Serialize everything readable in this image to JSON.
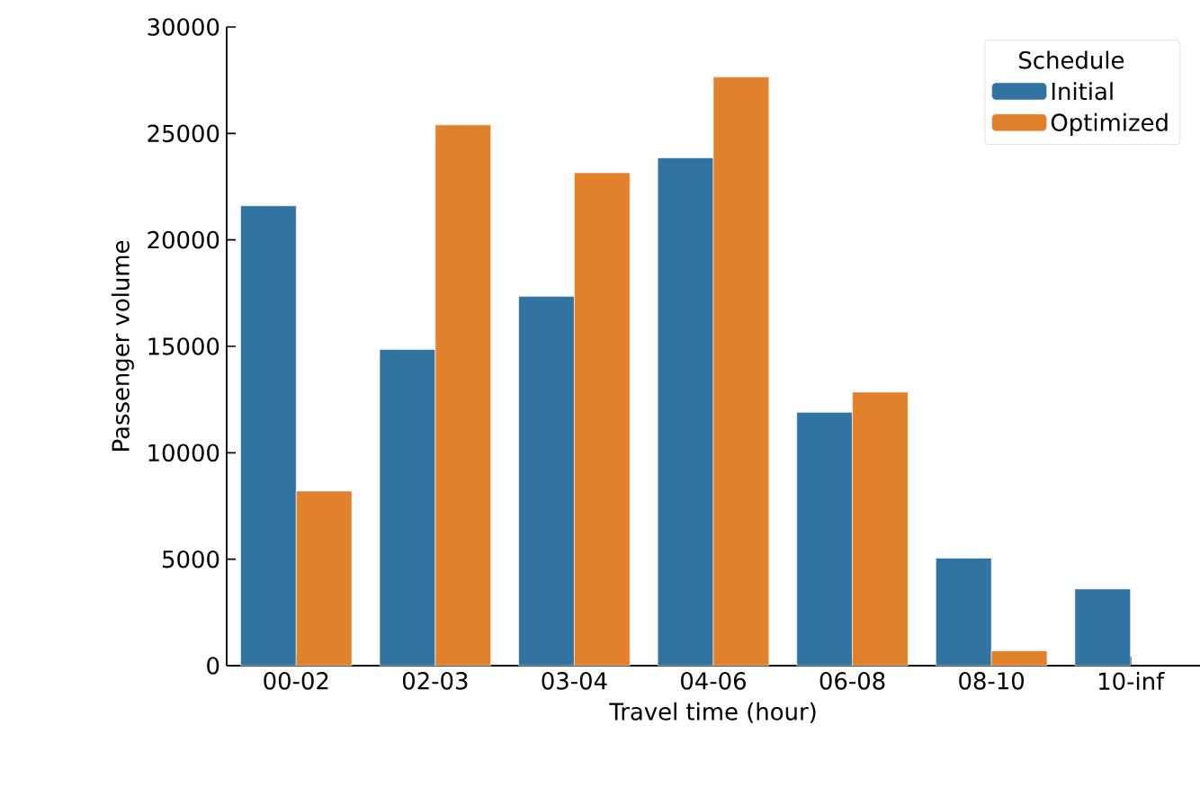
{
  "chart_data": {
    "type": "bar",
    "xlabel": "Travel time (hour)",
    "ylabel": "Passenger volume",
    "legend_title": "Schedule",
    "categories": [
      "00-02",
      "02-03",
      "03-04",
      "04-06",
      "06-08",
      "08-10",
      "10-inf"
    ],
    "series": [
      {
        "name": "Initial",
        "color": "#3274a1",
        "values": [
          21600,
          14850,
          17350,
          23850,
          11900,
          5050,
          3600
        ]
      },
      {
        "name": "Optimized",
        "color": "#e1812c",
        "values": [
          8200,
          25400,
          23150,
          27650,
          12850,
          700,
          null
        ]
      }
    ],
    "ylim": [
      0,
      30000
    ],
    "yticks": [
      0,
      5000,
      10000,
      15000,
      20000,
      25000,
      30000
    ],
    "legend": "top right"
  }
}
